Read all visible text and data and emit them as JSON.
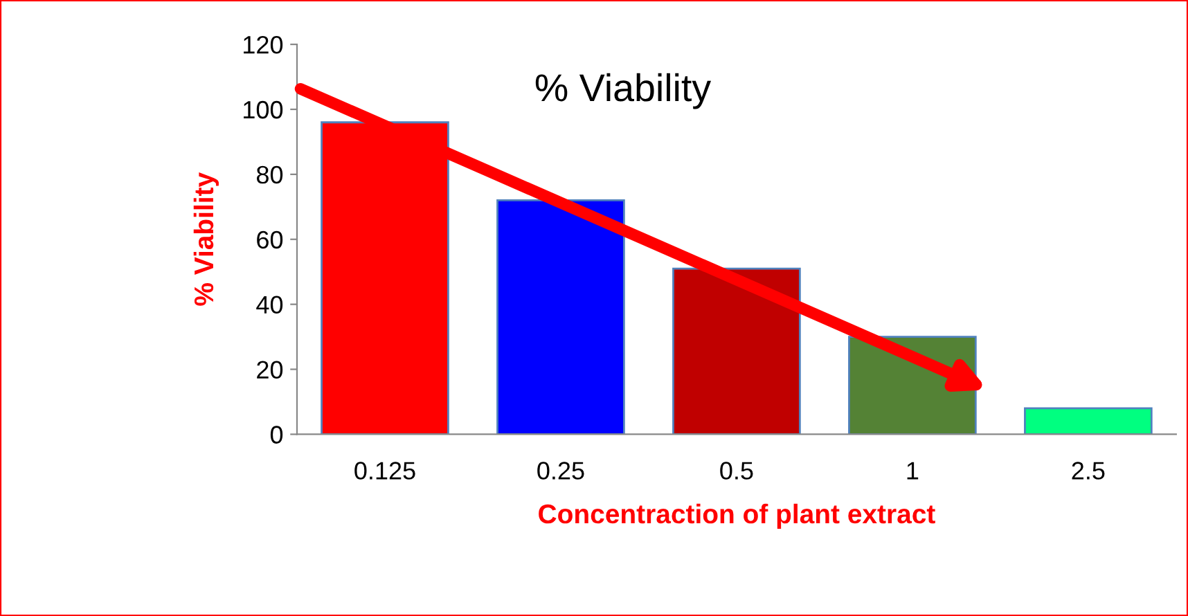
{
  "chart_data": {
    "type": "bar",
    "title": "% Viability",
    "xlabel": "Concentraction of plant extract",
    "ylabel": "% Viability",
    "categories": [
      "0.125",
      "0.25",
      "0.5",
      "1",
      "2.5"
    ],
    "values": [
      96,
      72,
      51,
      30,
      8
    ],
    "colors": [
      "#ff0000",
      "#0000ff",
      "#c00000",
      "#548235",
      "#00ff80"
    ],
    "ylim": [
      0,
      120
    ],
    "yticks": [
      0,
      20,
      40,
      60,
      80,
      100,
      120
    ],
    "grid": false
  }
}
